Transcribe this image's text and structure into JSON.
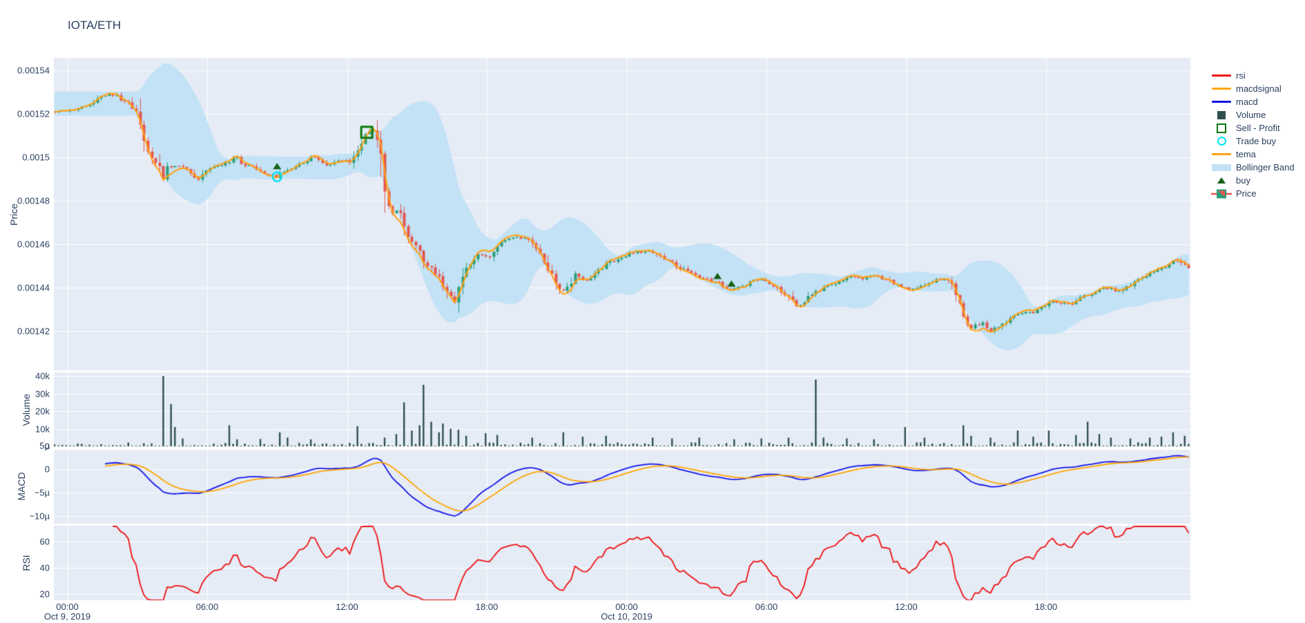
{
  "header": {
    "title": "IOTA/ETH"
  },
  "colors": {
    "text": "#2a3f5f",
    "plot_bg": "#e5ecf6",
    "grid": "#ffffff",
    "candle_up": "#2a9d78",
    "candle_down": "#e4564f",
    "tema": "#ffa216",
    "macd": "#1414e8",
    "macdsignal": "#ffa500",
    "rsi": "#ee1111",
    "volume_bar": "#2f4f4f",
    "bollinger": "#c3e2f6",
    "buy_marker": "#176117",
    "sell_marker": "#087808",
    "trade_buy_marker": "#00e5ee"
  },
  "legend": {
    "items": [
      {
        "label": "rsi",
        "swatch": "line",
        "color": "#ee1111"
      },
      {
        "label": "macdsignal",
        "swatch": "line",
        "color": "#ffa500"
      },
      {
        "label": "macd",
        "swatch": "line",
        "color": "#1414e8"
      },
      {
        "label": "Volume",
        "swatch": "square_filled",
        "color": "#2f4f4f"
      },
      {
        "label": "Sell - Profit",
        "swatch": "square_open",
        "color": "#087808"
      },
      {
        "label": "Trade buy",
        "swatch": "circle_open",
        "color": "#00e5ee"
      },
      {
        "label": "tema",
        "swatch": "line",
        "color": "#ffa216"
      },
      {
        "label": "Bollinger Band",
        "swatch": "thick_line",
        "color": "#c3e2f6"
      },
      {
        "label": "buy",
        "swatch": "triangle",
        "color": "#176117"
      },
      {
        "label": "Price",
        "swatch": "candle",
        "color": "#2a9d78"
      }
    ]
  },
  "axes": {
    "price": {
      "title": "Price",
      "ticks": [
        {
          "v": 0.00154,
          "label": "0.00154"
        },
        {
          "v": 0.00152,
          "label": "0.00152"
        },
        {
          "v": 0.0015,
          "label": "0.0015"
        },
        {
          "v": 0.00148,
          "label": "0.00148"
        },
        {
          "v": 0.00146,
          "label": "0.00146"
        },
        {
          "v": 0.00144,
          "label": "0.00144"
        },
        {
          "v": 0.00142,
          "label": "0.00142"
        }
      ]
    },
    "volume": {
      "title": "Volume",
      "ticks": [
        {
          "v": 40000,
          "label": "40k"
        },
        {
          "v": 30000,
          "label": "30k"
        },
        {
          "v": 20000,
          "label": "20k"
        },
        {
          "v": 10000,
          "label": "10k"
        },
        {
          "v": 0,
          "label": "0"
        }
      ]
    },
    "macd": {
      "title": "MACD",
      "ticks": [
        {
          "v": 5e-06,
          "label": "5µ"
        },
        {
          "v": 0,
          "label": "0"
        },
        {
          "v": -5e-06,
          "label": "−5µ"
        },
        {
          "v": -1e-05,
          "label": "−10µ"
        }
      ]
    },
    "rsi": {
      "title": "RSI",
      "ticks": [
        {
          "v": 60,
          "label": "60"
        },
        {
          "v": 40,
          "label": "40"
        },
        {
          "v": 20,
          "label": "20"
        }
      ]
    },
    "x": {
      "ticks": [
        {
          "t": 0,
          "label": "00:00",
          "sub": "Oct 9, 2019"
        },
        {
          "t": 6,
          "label": "06:00"
        },
        {
          "t": 12,
          "label": "12:00"
        },
        {
          "t": 18,
          "label": "18:00"
        },
        {
          "t": 24,
          "label": "00:00",
          "sub": "Oct 10, 2019"
        },
        {
          "t": 30,
          "label": "06:00"
        },
        {
          "t": 36,
          "label": "12:00"
        },
        {
          "t": 42,
          "label": "18:00"
        }
      ]
    }
  },
  "chart_data": {
    "type": "financial-multi-panel",
    "title": "IOTA/ETH",
    "panels": [
      "Price (candlestick + tema + Bollinger Band + trade markers)",
      "Volume (bar)",
      "MACD (macd, macdsignal lines)",
      "RSI (line)"
    ],
    "x_unit": "hours since Oct 9, 2019 00:00",
    "x_range_hours": [
      -0.58,
      48.19
    ],
    "candle_interval_minutes": 10,
    "price_axis_range": [
      0.0014019,
      0.0015457
    ],
    "volume_axis_range": [
      0,
      42000
    ],
    "macd_axis_range": [
      -1.16e-05,
      4.1e-06
    ],
    "rsi_axis_range": [
      15.3,
      72.1
    ],
    "price_keyframes": [
      [
        -0.6,
        0.001521
      ],
      [
        0,
        0.0015215
      ],
      [
        0.5,
        0.001523
      ],
      [
        1.0,
        0.0015245
      ],
      [
        1.4,
        0.001527
      ],
      [
        1.8,
        0.0015295
      ],
      [
        2.1,
        0.001528
      ],
      [
        2.5,
        0.0015255
      ],
      [
        2.9,
        0.001522
      ],
      [
        3.15,
        0.001513
      ],
      [
        3.35,
        0.001505
      ],
      [
        3.6,
        0.0015
      ],
      [
        3.85,
        0.001497
      ],
      [
        4.0,
        0.001496
      ],
      [
        4.1,
        0.001489
      ],
      [
        4.25,
        0.001495
      ],
      [
        4.6,
        0.001496
      ],
      [
        5.0,
        0.0014955
      ],
      [
        5.35,
        0.001493
      ],
      [
        5.6,
        0.0014895
      ],
      [
        5.9,
        0.001494
      ],
      [
        6.3,
        0.001496
      ],
      [
        6.7,
        0.001497
      ],
      [
        7.2,
        0.0015
      ],
      [
        7.6,
        0.001496
      ],
      [
        8.0,
        0.001496
      ],
      [
        8.4,
        0.001493
      ],
      [
        8.75,
        0.0014915
      ],
      [
        9.0,
        0.001491
      ],
      [
        9.3,
        0.001494
      ],
      [
        9.7,
        0.001496
      ],
      [
        10.1,
        0.001498
      ],
      [
        10.6,
        0.001501
      ],
      [
        11.2,
        0.001496
      ],
      [
        11.6,
        0.001498
      ],
      [
        11.9,
        0.0014985
      ],
      [
        12.15,
        0.001497
      ],
      [
        12.4,
        0.001502
      ],
      [
        12.65,
        0.001508
      ],
      [
        12.85,
        0.0015115
      ],
      [
        13.05,
        0.0015125
      ],
      [
        13.25,
        0.0015105
      ],
      [
        13.45,
        0.001502
      ],
      [
        13.65,
        0.001482
      ],
      [
        13.9,
        0.001473
      ],
      [
        14.2,
        0.001477
      ],
      [
        14.5,
        0.001466
      ],
      [
        14.8,
        0.001461
      ],
      [
        15.1,
        0.001457
      ],
      [
        15.35,
        0.001451
      ],
      [
        15.65,
        0.001448
      ],
      [
        16.0,
        0.001444
      ],
      [
        16.3,
        0.001437
      ],
      [
        16.6,
        0.0014335
      ],
      [
        16.9,
        0.001443
      ],
      [
        17.2,
        0.00145
      ],
      [
        17.6,
        0.001456
      ],
      [
        18.1,
        0.0014545
      ],
      [
        18.6,
        0.001461
      ],
      [
        19.2,
        0.001464
      ],
      [
        19.8,
        0.001462
      ],
      [
        20.3,
        0.001455
      ],
      [
        20.7,
        0.001447
      ],
      [
        21.1,
        0.00144
      ],
      [
        21.35,
        0.001438
      ],
      [
        21.8,
        0.001446
      ],
      [
        22.3,
        0.001443
      ],
      [
        22.8,
        0.001448
      ],
      [
        23.3,
        0.001452
      ],
      [
        23.8,
        0.001454
      ],
      [
        24.3,
        0.001456
      ],
      [
        24.8,
        0.001457
      ],
      [
        25.3,
        0.001455
      ],
      [
        25.8,
        0.001452
      ],
      [
        26.3,
        0.001449
      ],
      [
        26.8,
        0.001446
      ],
      [
        27.3,
        0.001444
      ],
      [
        27.9,
        0.0014425
      ],
      [
        28.5,
        0.001439
      ],
      [
        29.0,
        0.001441
      ],
      [
        29.5,
        0.001444
      ],
      [
        30.0,
        0.001443
      ],
      [
        30.5,
        0.00144
      ],
      [
        31.0,
        0.001435
      ],
      [
        31.3,
        0.001431
      ],
      [
        31.8,
        0.001436
      ],
      [
        32.1,
        0.001438
      ],
      [
        32.6,
        0.001441
      ],
      [
        33.1,
        0.001443
      ],
      [
        33.6,
        0.001445
      ],
      [
        34.1,
        0.001444
      ],
      [
        34.6,
        0.001446
      ],
      [
        35.1,
        0.001444
      ],
      [
        35.6,
        0.001441
      ],
      [
        36.1,
        0.001439
      ],
      [
        36.6,
        0.001441
      ],
      [
        37.1,
        0.001443
      ],
      [
        37.6,
        0.001444
      ],
      [
        38.0,
        0.001441
      ],
      [
        38.3,
        0.001432
      ],
      [
        38.55,
        0.001424
      ],
      [
        38.8,
        0.001421
      ],
      [
        39.2,
        0.001424
      ],
      [
        39.6,
        0.00142
      ],
      [
        40.0,
        0.001422
      ],
      [
        40.4,
        0.001426
      ],
      [
        40.9,
        0.001428
      ],
      [
        41.5,
        0.001429
      ],
      [
        42.3,
        0.001434
      ],
      [
        43.0,
        0.001432
      ],
      [
        43.8,
        0.001437
      ],
      [
        44.5,
        0.00144
      ],
      [
        45.2,
        0.001438
      ],
      [
        45.8,
        0.001443
      ],
      [
        46.5,
        0.001447
      ],
      [
        47.1,
        0.00145
      ],
      [
        47.5,
        0.001453
      ],
      [
        47.9,
        0.00145
      ],
      [
        48.2,
        0.001448
      ]
    ],
    "volume_spikes": [
      [
        4.07,
        40000
      ],
      [
        4.37,
        24000
      ],
      [
        4.6,
        11000
      ],
      [
        5.0,
        4500
      ],
      [
        6.98,
        12000
      ],
      [
        7.3,
        4000
      ],
      [
        8.3,
        4200
      ],
      [
        9.1,
        8000
      ],
      [
        9.4,
        5000
      ],
      [
        10.4,
        4000
      ],
      [
        12.5,
        11500
      ],
      [
        13.6,
        5000
      ],
      [
        14.1,
        7000
      ],
      [
        14.5,
        25000
      ],
      [
        14.8,
        9000
      ],
      [
        15.05,
        12000
      ],
      [
        15.3,
        35000
      ],
      [
        15.6,
        14000
      ],
      [
        15.9,
        8000
      ],
      [
        16.15,
        13000
      ],
      [
        16.45,
        10000
      ],
      [
        16.8,
        9500
      ],
      [
        17.1,
        6000
      ],
      [
        17.9,
        7500
      ],
      [
        18.4,
        6500
      ],
      [
        20.0,
        5000
      ],
      [
        21.3,
        8000
      ],
      [
        22.2,
        5500
      ],
      [
        23.2,
        6000
      ],
      [
        25.1,
        5000
      ],
      [
        26.0,
        4500
      ],
      [
        27.2,
        5000
      ],
      [
        28.6,
        4000
      ],
      [
        29.8,
        4500
      ],
      [
        31.0,
        5000
      ],
      [
        32.08,
        38000
      ],
      [
        32.4,
        5000
      ],
      [
        33.5,
        4500
      ],
      [
        34.6,
        4000
      ],
      [
        35.9,
        11000
      ],
      [
        36.8,
        5000
      ],
      [
        38.4,
        12000
      ],
      [
        38.8,
        6000
      ],
      [
        39.6,
        5000
      ],
      [
        40.7,
        9000
      ],
      [
        41.5,
        5500
      ],
      [
        42.1,
        9000
      ],
      [
        43.2,
        6500
      ],
      [
        43.8,
        14000
      ],
      [
        44.3,
        7000
      ],
      [
        44.8,
        5000
      ],
      [
        45.6,
        4500
      ],
      [
        46.4,
        5000
      ],
      [
        47.0,
        5500
      ],
      [
        47.4,
        8000
      ],
      [
        47.9,
        6000
      ]
    ],
    "markers": {
      "buy": [
        [
          9.0,
          0.0014945
        ],
        [
          27.9,
          0.001444
        ],
        [
          28.5,
          0.0014405
        ]
      ],
      "trade_buy": [
        [
          9.0,
          0.001491
        ]
      ],
      "sell_profit": [
        [
          12.85,
          0.0015115
        ]
      ]
    },
    "indicators": {
      "tema_period": 7,
      "bb_period": 20,
      "bb_std": 2,
      "macd_fast": 12,
      "macd_slow": 26,
      "macd_signal": 9,
      "rsi_period": 14
    }
  }
}
